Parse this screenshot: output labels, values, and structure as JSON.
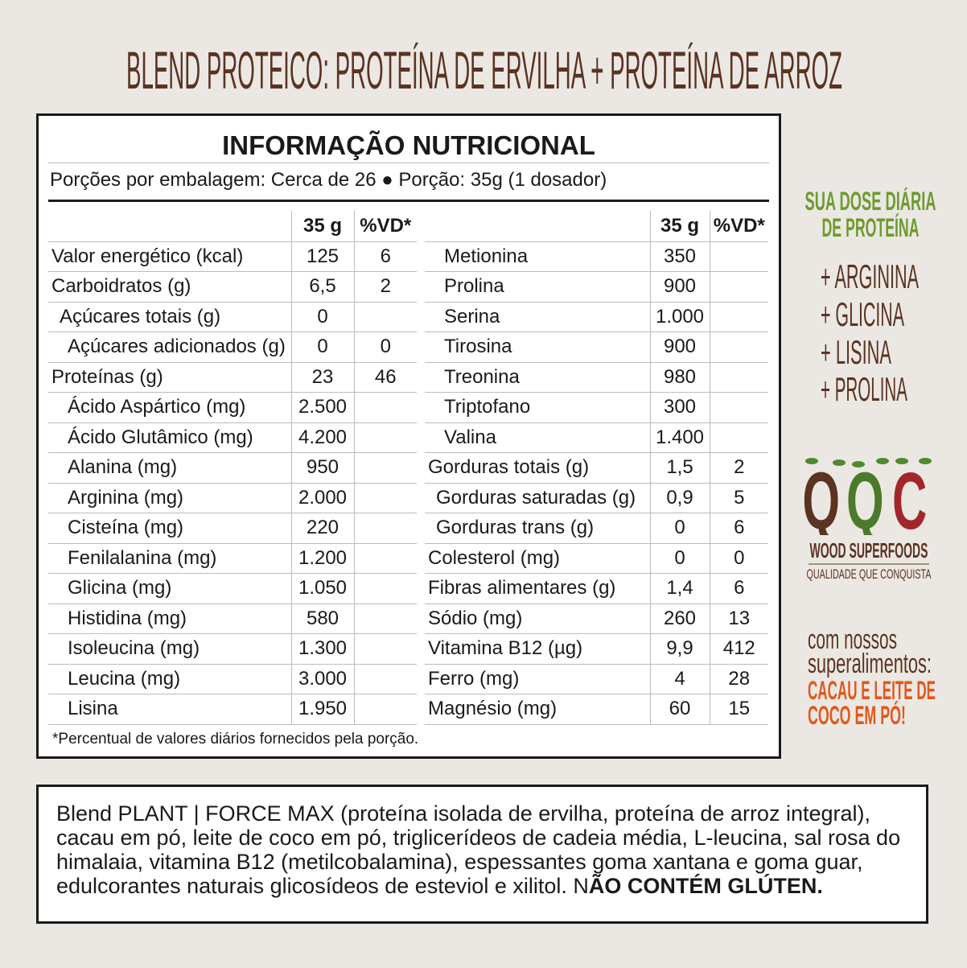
{
  "title": "BLEND PROTEICO: PROTEÍNA DE ERVILHA + PROTEÍNA DE ARROZ",
  "panel": {
    "title": "INFORMAÇÃO NUTRICIONAL",
    "portions": "Porções por embalagem: Cerca de 26 ● Porção: 35g (1 dosador)",
    "col_amount": "35 g",
    "col_vd": "%VD*",
    "left_rows": [
      {
        "label": "Valor energético (kcal)",
        "amount": "125",
        "vd": "6",
        "indent": 0
      },
      {
        "label": "Carboidratos (g)",
        "amount": "6,5",
        "vd": "2",
        "indent": 0
      },
      {
        "label": "Açúcares totais (g)",
        "amount": "0",
        "vd": "",
        "indent": 1
      },
      {
        "label": "Açúcares adicionados (g)",
        "amount": "0",
        "vd": "0",
        "indent": 2
      },
      {
        "label": "Proteínas (g)",
        "amount": "23",
        "vd": "46",
        "indent": 0
      },
      {
        "label": "Ácido Aspártico (mg)",
        "amount": "2.500",
        "vd": "",
        "indent": 2
      },
      {
        "label": "Ácido Glutâmico (mg)",
        "amount": "4.200",
        "vd": "",
        "indent": 2
      },
      {
        "label": "Alanina (mg)",
        "amount": "950",
        "vd": "",
        "indent": 2
      },
      {
        "label": "Arginina (mg)",
        "amount": "2.000",
        "vd": "",
        "indent": 2
      },
      {
        "label": "Cisteína (mg)",
        "amount": "220",
        "vd": "",
        "indent": 2
      },
      {
        "label": "Fenilalanina (mg)",
        "amount": "1.200",
        "vd": "",
        "indent": 2
      },
      {
        "label": "Glicina (mg)",
        "amount": "1.050",
        "vd": "",
        "indent": 2
      },
      {
        "label": "Histidina (mg)",
        "amount": "580",
        "vd": "",
        "indent": 2
      },
      {
        "label": "Isoleucina (mg)",
        "amount": "1.300",
        "vd": "",
        "indent": 2
      },
      {
        "label": "Leucina (mg)",
        "amount": "3.000",
        "vd": "",
        "indent": 2
      },
      {
        "label": "Lisina",
        "amount": "1.950",
        "vd": "",
        "indent": 2
      }
    ],
    "right_rows": [
      {
        "label": "Metionina",
        "amount": "350",
        "vd": "",
        "indent": 2
      },
      {
        "label": "Prolina",
        "amount": "900",
        "vd": "",
        "indent": 2
      },
      {
        "label": "Serina",
        "amount": "1.000",
        "vd": "",
        "indent": 2
      },
      {
        "label": "Tirosina",
        "amount": "900",
        "vd": "",
        "indent": 2
      },
      {
        "label": "Treonina",
        "amount": "980",
        "vd": "",
        "indent": 2
      },
      {
        "label": "Triptofano",
        "amount": "300",
        "vd": "",
        "indent": 2
      },
      {
        "label": "Valina",
        "amount": "1.400",
        "vd": "",
        "indent": 2
      },
      {
        "label": "Gorduras totais (g)",
        "amount": "1,5",
        "vd": "2",
        "indent": 0
      },
      {
        "label": "Gorduras saturadas (g)",
        "amount": "0,9",
        "vd": "5",
        "indent": 1
      },
      {
        "label": "Gorduras trans (g)",
        "amount": "0",
        "vd": "6",
        "indent": 1
      },
      {
        "label": "Colesterol (mg)",
        "amount": "0",
        "vd": "0",
        "indent": 0
      },
      {
        "label": "Fibras alimentares (g)",
        "amount": "1,4",
        "vd": "6",
        "indent": 0
      },
      {
        "label": "Sódio (mg)",
        "amount": "260",
        "vd": "13",
        "indent": 0
      },
      {
        "label": "Vitamina B12 (µg)",
        "amount": "9,9",
        "vd": "412",
        "indent": 0
      },
      {
        "label": "Ferro (mg)",
        "amount": "4",
        "vd": "28",
        "indent": 0
      },
      {
        "label": "Magnésio (mg)",
        "amount": "60",
        "vd": "15",
        "indent": 0
      }
    ],
    "footnote": "*Percentual de valores diários fornecidos pela porção."
  },
  "side": {
    "dose_line1": "SUA DOSE DIÁRIA",
    "dose_line2": "DE PROTEÍNA",
    "amino": [
      "+ ARGININA",
      "+ GLICINA",
      "+ LISINA",
      "+ PROLINA"
    ],
    "logo_letters": "QQC",
    "brand": "WOOD SUPERFOODS",
    "tagline": "QUALIDADE QUE CONQUISTA",
    "com1": "com nossos",
    "com2": "superalimentos:",
    "cacau1": "CACAU E LEITE DE",
    "cacau2": "COCO EM PÓ!",
    "colors": {
      "brown": "#5b3320",
      "green": "#4a7a2a",
      "red": "#a3272a",
      "orange": "#e0581c"
    }
  },
  "ingredients": {
    "text": "Blend PLANT | FORCE MAX (proteína isolada de ervilha, proteína de arroz integral), cacau em pó, leite de coco em pó, triglicerídeos de cadeia média, L-leucina, sal rosa do himalaia, vitamina B12 (metilcobalamina), espessantes goma xantana e goma guar, edulcorantes naturais glicosídeos de esteviol e xilitol. N",
    "bold": "ÃO CONTÉM GLÚTEN."
  }
}
